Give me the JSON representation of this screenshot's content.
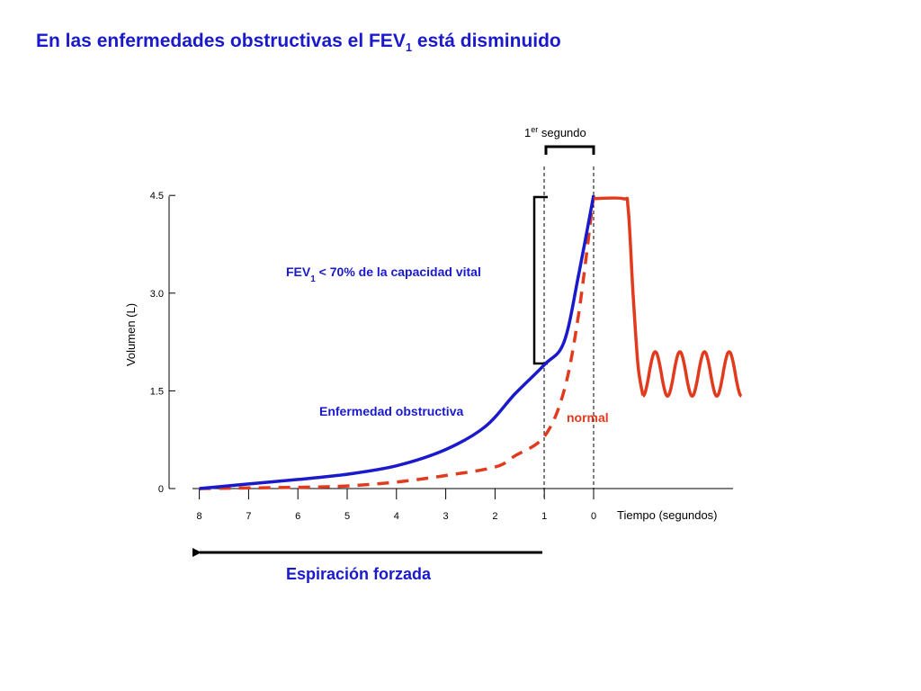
{
  "slide": {
    "title_main": "En las enfermedades obstructivas el FEV",
    "title_sub": "1",
    "title_rest": " está disminuido"
  },
  "colors": {
    "obstructive": "#1a1acc",
    "normal": "#e23a1d",
    "axis": "#000000"
  },
  "chart_data": {
    "type": "line",
    "xlabel": "Tiempo (segundos)",
    "ylabel": "Volumen (L)",
    "x_ticks": [
      8,
      7,
      6,
      5,
      4,
      3,
      2,
      1,
      0
    ],
    "y_ticks": [
      "0",
      "1.5",
      "3.0",
      "4.5"
    ],
    "xlim": [
      8,
      -3
    ],
    "ylim": [
      0,
      4.5
    ],
    "x_reversed": true,
    "grid": false,
    "series": [
      {
        "name": "Enfermedad obstructiva",
        "style": "solid",
        "color": "#1a1acc",
        "x": [
          8,
          7,
          6,
          5,
          4,
          3,
          2.2,
          1.6,
          1.0,
          0.6,
          0.3,
          0
        ],
        "y": [
          0,
          0.07,
          0.14,
          0.22,
          0.35,
          0.6,
          0.95,
          1.45,
          1.9,
          2.25,
          3.3,
          4.5
        ]
      },
      {
        "name": "normal",
        "style": "dashed",
        "color": "#e23a1d",
        "x": [
          8,
          6,
          5,
          4,
          3,
          2,
          1.6,
          1.0,
          0.6,
          0.3,
          0
        ],
        "y": [
          0,
          0.02,
          0.04,
          0.1,
          0.2,
          0.33,
          0.5,
          0.8,
          1.5,
          2.7,
          4.5
        ]
      }
    ],
    "plateau": {
      "color": "#e23a1d",
      "x": [
        0,
        -0.6,
        -0.7,
        -0.8,
        -0.9,
        -1.0
      ],
      "y": [
        4.45,
        4.45,
        4.3,
        3.0,
        1.9,
        1.43
      ]
    },
    "tidal_wave": {
      "color": "#e23a1d",
      "x_start": -1.0,
      "x_end": -3.0,
      "cycles": 4,
      "y_min": 1.42,
      "y_max": 2.1
    },
    "annotations": {
      "first_second_base": "1",
      "first_second_sup": "er",
      "first_second_rest": " segundo",
      "fev_label_main": "FEV",
      "fev_label_sub": "1",
      "fev_label_rest": " < 70% de la capacidad vital",
      "obstructive_label": "Enfermedad obstructiva",
      "normal_label": "normal",
      "forced_expiration": "Espiración forzada"
    }
  }
}
